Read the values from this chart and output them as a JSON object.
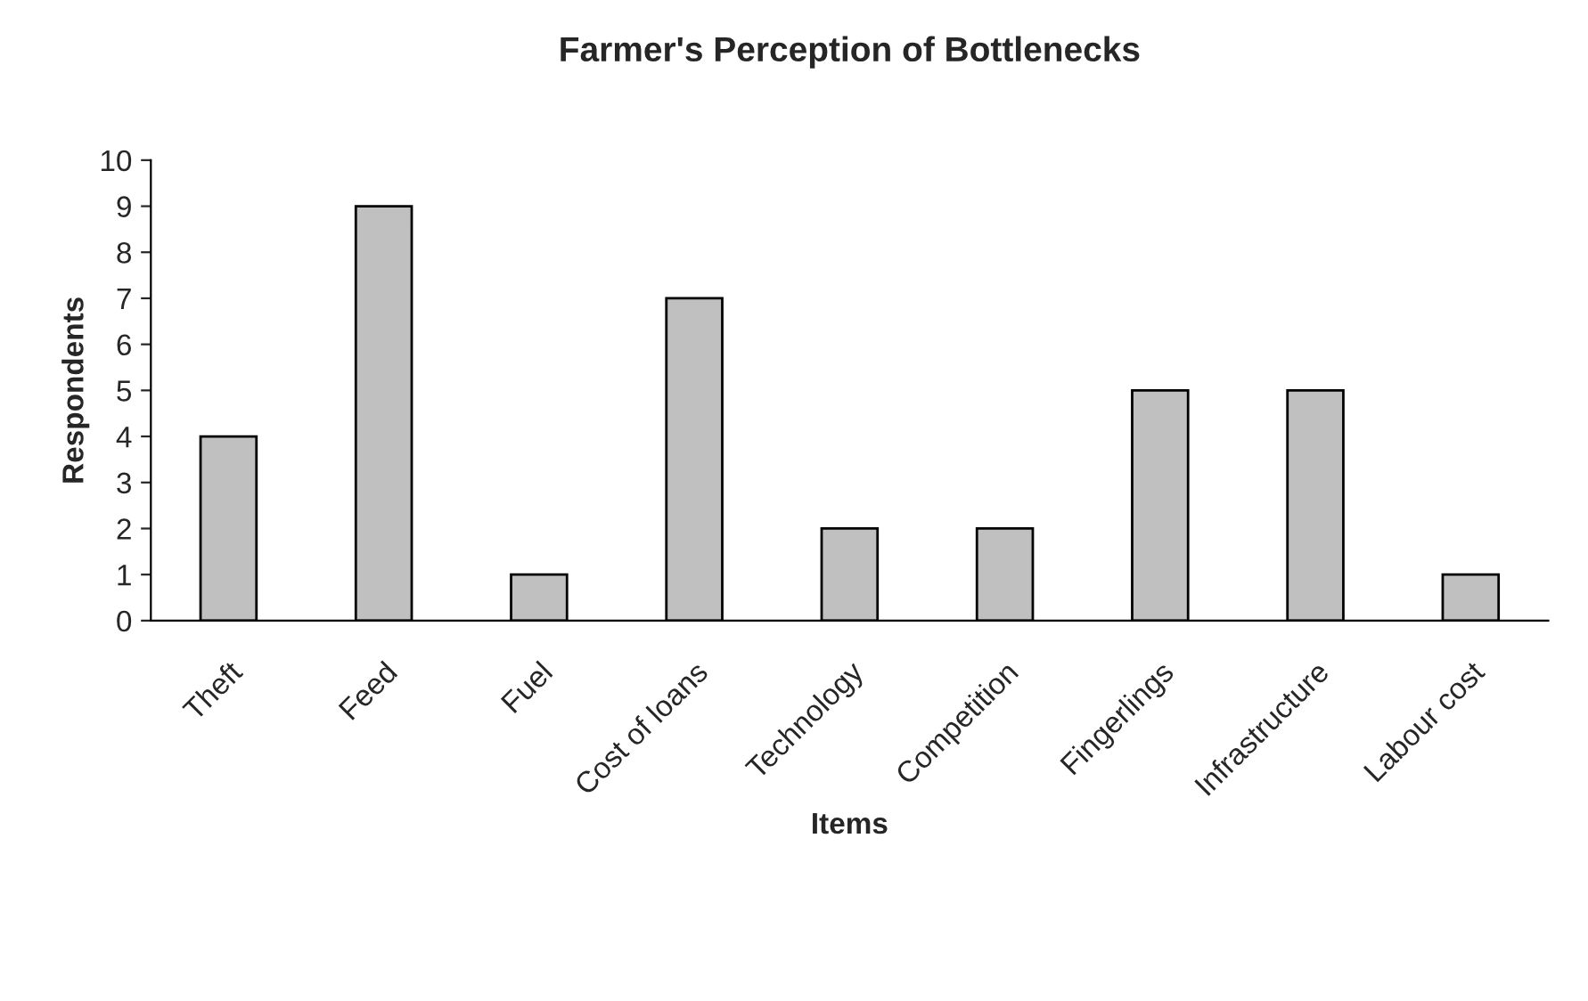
{
  "chart_data": {
    "type": "bar",
    "title": "Farmer's Perception of Bottlenecks",
    "xlabel": "Items",
    "ylabel": "Respondents",
    "categories": [
      "Theft",
      "Feed",
      "Fuel",
      "Cost of loans",
      "Technology",
      "Competition",
      "Fingerlings",
      "Infrastructure",
      "Labour cost"
    ],
    "values": [
      4,
      9,
      1,
      7,
      2,
      2,
      5,
      5,
      1
    ],
    "color": "#c0c0c0",
    "ylim": [
      0,
      10
    ],
    "yticks": [
      0,
      1,
      2,
      3,
      4,
      5,
      6,
      7,
      8,
      9,
      10
    ],
    "grid": false
  }
}
